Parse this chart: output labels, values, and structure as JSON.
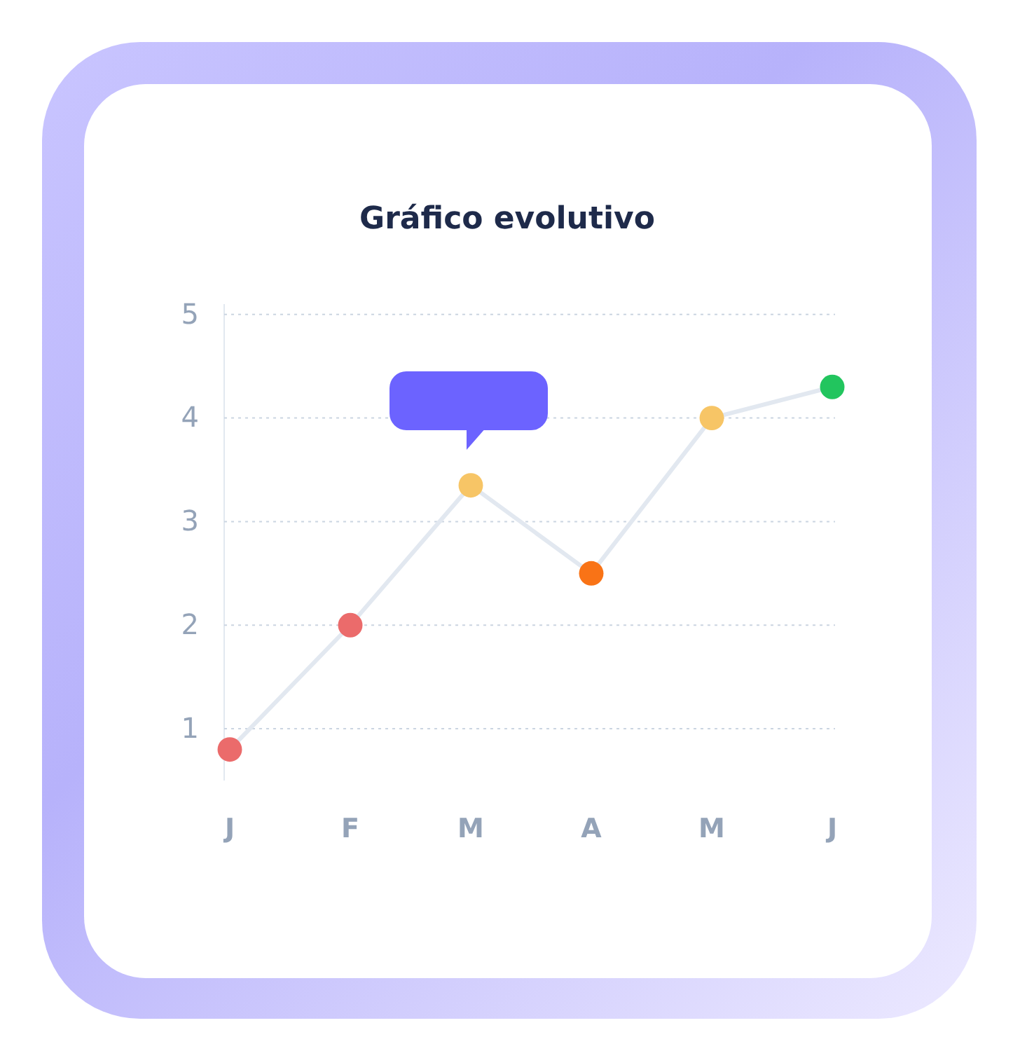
{
  "chart_data": {
    "type": "line",
    "title": "Gráfico evolutivo",
    "categories": [
      "J",
      "F",
      "M",
      "A",
      "M",
      "J"
    ],
    "series": [
      {
        "color": "#e2e8f0",
        "colors": [
          "#eb6b6b",
          "#eb6b6b",
          "#f7c566",
          "#f97316",
          "#f7c566",
          "#22c55e"
        ],
        "values": [
          0.8,
          2.0,
          3.35,
          2.5,
          4.0,
          4.3
        ]
      }
    ],
    "ylim": [
      0.5,
      5.1
    ],
    "yticks": [
      1,
      2,
      3,
      4,
      5
    ],
    "grid": "y",
    "marker": "circle",
    "line_style": "solid"
  }
}
